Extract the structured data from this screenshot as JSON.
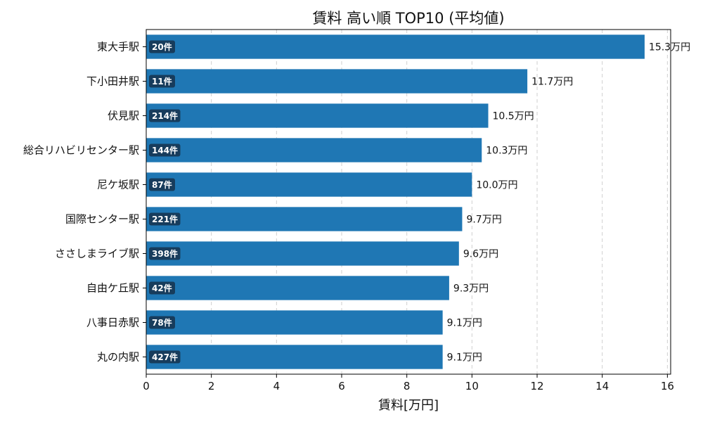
{
  "chart_data": {
    "type": "bar",
    "orientation": "horizontal",
    "title": "賃料 高い順 TOP10 (平均値)",
    "xlabel": "賃料[万円]",
    "ylabel": "",
    "xlim": [
      0,
      16.1
    ],
    "xticks": [
      0,
      2,
      4,
      6,
      8,
      10,
      12,
      14,
      16
    ],
    "grid": "x-dashed",
    "categories": [
      "東大手駅",
      "下小田井駅",
      "伏見駅",
      "総合リハビリセンター駅",
      "尼ケ坂駅",
      "国際センター駅",
      "ささしまライブ駅",
      "自由ケ丘駅",
      "八事日赤駅",
      "丸の内駅"
    ],
    "values": [
      15.3,
      11.7,
      10.5,
      10.3,
      10.0,
      9.7,
      9.6,
      9.3,
      9.1,
      9.1
    ],
    "value_labels": [
      "15.3万円",
      "11.7万円",
      "10.5万円",
      "10.3万円",
      "10.0万円",
      "9.7万円",
      "9.6万円",
      "9.3万円",
      "9.1万円",
      "9.1万円"
    ],
    "counts": [
      "20件",
      "11件",
      "214件",
      "144件",
      "87件",
      "221件",
      "398件",
      "42件",
      "78件",
      "427件"
    ],
    "bar_color": "#1f77b4",
    "count_badge_color": "#173c5c"
  }
}
